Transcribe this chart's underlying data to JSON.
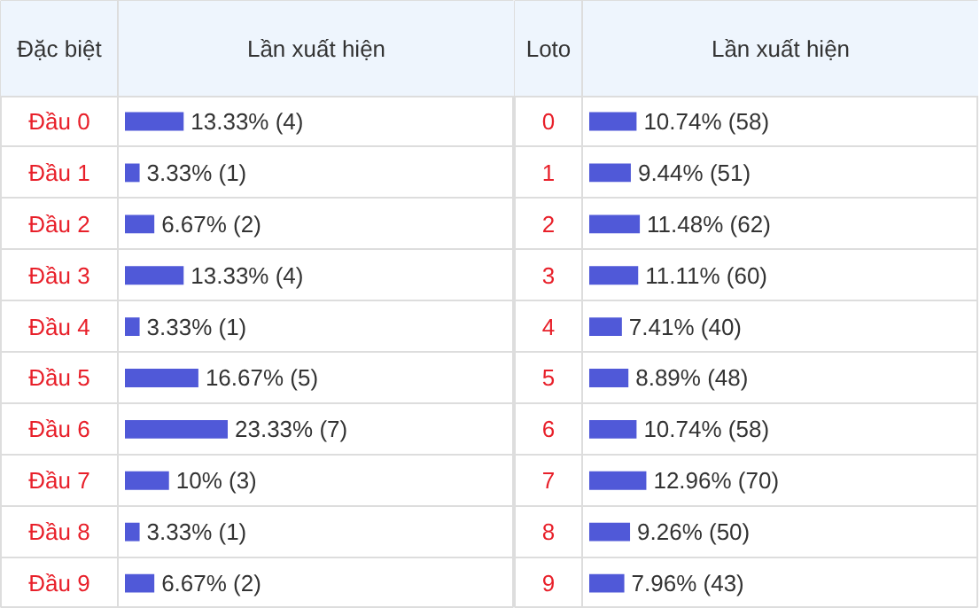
{
  "chart_data": [
    {
      "type": "bar",
      "orientation": "horizontal",
      "ylabel": "Đặc biệt",
      "xlabel": "Lần xuất hiện",
      "categories": [
        "Đầu 0",
        "Đầu 1",
        "Đầu 2",
        "Đầu 3",
        "Đầu 4",
        "Đầu 5",
        "Đầu 6",
        "Đầu 7",
        "Đầu 8",
        "Đầu 9"
      ],
      "values": [
        13.33,
        3.33,
        6.67,
        13.33,
        3.33,
        16.67,
        23.33,
        10,
        3.33,
        6.67
      ],
      "value_labels": [
        "13.33% (4)",
        "3.33% (1)",
        "6.67% (2)",
        "13.33% (4)",
        "3.33% (1)",
        "16.67% (5)",
        "23.33% (7)",
        "10% (3)",
        "3.33% (1)",
        "6.67% (2)"
      ],
      "color": "#5059d8",
      "grid": true
    },
    {
      "type": "bar",
      "orientation": "horizontal",
      "ylabel": "Loto",
      "xlabel": "Lần xuất hiện",
      "categories": [
        "0",
        "1",
        "2",
        "3",
        "4",
        "5",
        "6",
        "7",
        "8",
        "9"
      ],
      "values": [
        10.74,
        9.44,
        11.48,
        11.11,
        7.41,
        8.89,
        10.74,
        12.96,
        9.26,
        7.96
      ],
      "value_labels": [
        "10.74% (58)",
        "9.44% (51)",
        "11.48% (62)",
        "11.11% (60)",
        "7.41% (40)",
        "8.89% (48)",
        "10.74% (58)",
        "12.96% (70)",
        "9.26% (50)",
        "7.96% (43)"
      ],
      "color": "#5059d8",
      "grid": true
    }
  ]
}
